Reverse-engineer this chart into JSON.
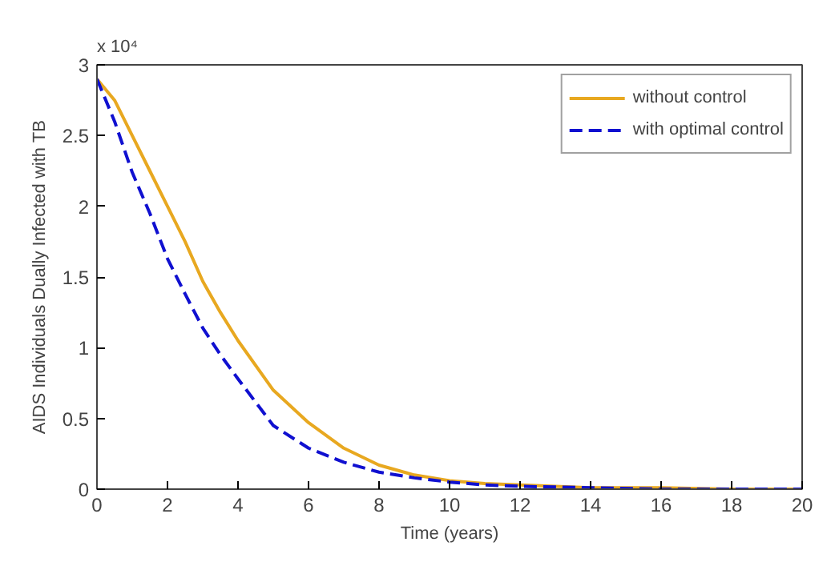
{
  "chart_data": {
    "type": "line",
    "x": [
      0,
      0.5,
      1,
      1.5,
      2,
      2.5,
      3,
      3.5,
      4,
      5,
      6,
      7,
      8,
      9,
      10,
      11,
      12,
      14,
      16,
      18,
      20
    ],
    "series": [
      {
        "name": "without control",
        "color": "#e8a820",
        "line_style": "solid",
        "values": [
          2.9,
          2.75,
          2.5,
          2.25,
          2.0,
          1.75,
          1.47,
          1.25,
          1.05,
          0.7,
          0.47,
          0.29,
          0.17,
          0.1,
          0.06,
          0.04,
          0.03,
          0.01,
          0.01,
          0.0,
          0.0
        ]
      },
      {
        "name": "with optimal control",
        "color": "#1010d0",
        "line_style": "dashed",
        "values": [
          2.9,
          2.6,
          2.24,
          1.95,
          1.63,
          1.38,
          1.14,
          0.95,
          0.78,
          0.45,
          0.29,
          0.19,
          0.12,
          0.08,
          0.05,
          0.03,
          0.02,
          0.01,
          0.0,
          0.0,
          0.0
        ]
      }
    ],
    "xlabel": "Time (years)",
    "ylabel": "AIDS Individuals Dually Infected with TB",
    "annotations": [
      "x 10⁴"
    ],
    "xlim": [
      0,
      20
    ],
    "xticks": [
      0,
      2,
      4,
      6,
      8,
      10,
      12,
      14,
      16,
      18,
      20
    ],
    "ylim": [
      0,
      3
    ],
    "yticks": [
      0,
      0.5,
      1,
      1.5,
      2,
      2.5,
      3
    ],
    "legend": "top right",
    "grid": false,
    "marker": "none"
  }
}
